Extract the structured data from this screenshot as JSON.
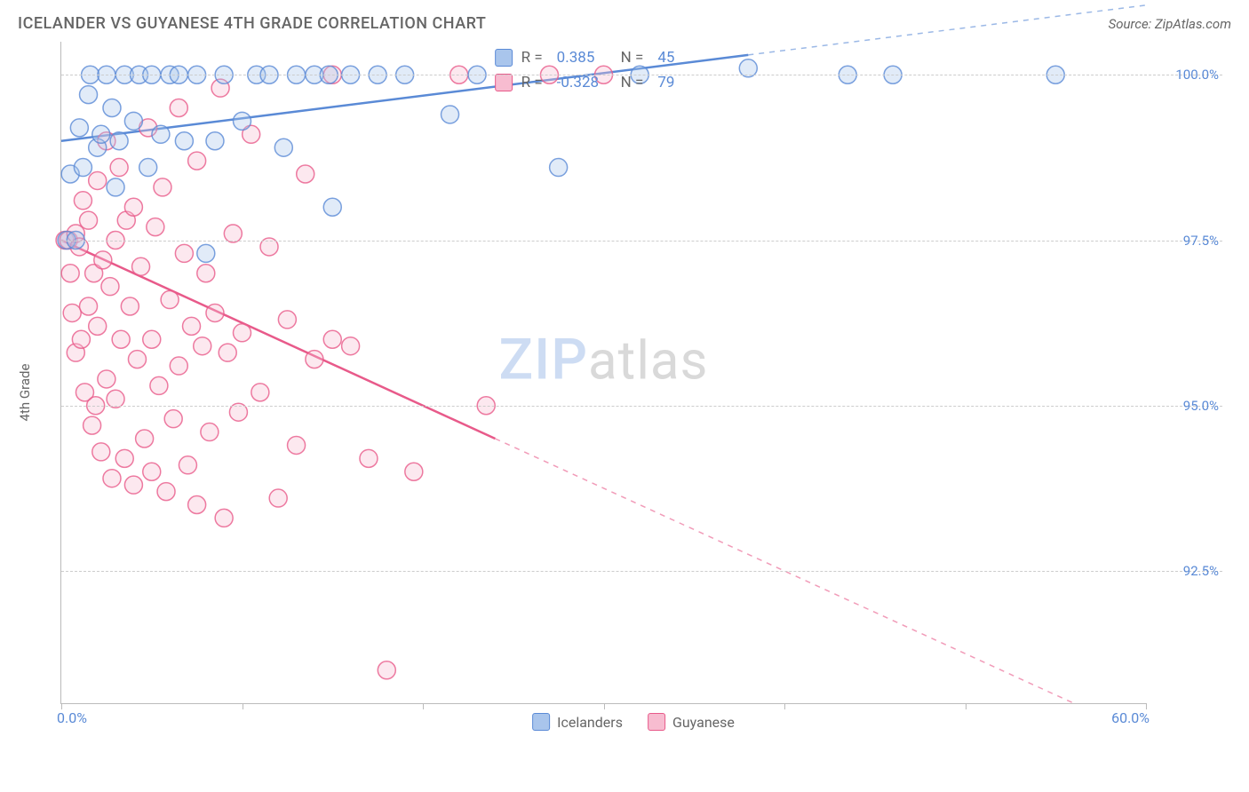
{
  "header": {
    "title": "ICELANDER VS GUYANESE 4TH GRADE CORRELATION CHART",
    "source": "Source: ZipAtlas.com"
  },
  "watermark": {
    "brand_prefix": "ZIP",
    "brand_suffix": "atlas"
  },
  "chart": {
    "type": "scatter",
    "ylabel": "4th Grade",
    "background_color": "#ffffff",
    "grid_color": "#cccccc",
    "axis_color": "#bbbbbb",
    "tick_label_color": "#5a8ad6",
    "text_color": "#666666",
    "xlim": [
      0,
      60
    ],
    "ylim": [
      90.5,
      100.5
    ],
    "x_ticks": [
      0,
      10,
      20,
      30,
      40,
      50,
      60
    ],
    "x_tick_labels": {
      "min": "0.0%",
      "max": "60.0%"
    },
    "y_gridlines": [
      92.5,
      95.0,
      97.5,
      100.0
    ],
    "y_tick_labels": [
      "92.5%",
      "95.0%",
      "97.5%",
      "100.0%"
    ],
    "marker_radius": 10,
    "marker_fill_opacity": 0.35,
    "marker_stroke_width": 1.5,
    "trend_line_width": 2.5,
    "series": [
      {
        "name": "Icelanders",
        "color": "#5a8ad6",
        "fill": "#a9c5ec",
        "R": "0.385",
        "N": "45",
        "trend": {
          "x1": 0,
          "y1": 99.0,
          "x2": 38,
          "y2": 100.3,
          "extrapolate_to_x": 60
        },
        "points": [
          [
            0.3,
            97.5
          ],
          [
            0.5,
            98.5
          ],
          [
            0.8,
            97.5
          ],
          [
            1.0,
            99.2
          ],
          [
            1.2,
            98.6
          ],
          [
            1.5,
            99.7
          ],
          [
            1.6,
            100.0
          ],
          [
            2.0,
            98.9
          ],
          [
            2.2,
            99.1
          ],
          [
            2.5,
            100.0
          ],
          [
            2.8,
            99.5
          ],
          [
            3.0,
            98.3
          ],
          [
            3.2,
            99.0
          ],
          [
            3.5,
            100.0
          ],
          [
            4.0,
            99.3
          ],
          [
            4.3,
            100.0
          ],
          [
            4.8,
            98.6
          ],
          [
            5.0,
            100.0
          ],
          [
            5.5,
            99.1
          ],
          [
            6.0,
            100.0
          ],
          [
            6.5,
            100.0
          ],
          [
            6.8,
            99.0
          ],
          [
            7.5,
            100.0
          ],
          [
            8.0,
            97.3
          ],
          [
            8.5,
            99.0
          ],
          [
            9.0,
            100.0
          ],
          [
            10.0,
            99.3
          ],
          [
            10.8,
            100.0
          ],
          [
            11.5,
            100.0
          ],
          [
            12.3,
            98.9
          ],
          [
            13.0,
            100.0
          ],
          [
            14.0,
            100.0
          ],
          [
            14.8,
            100.0
          ],
          [
            15.0,
            98.0
          ],
          [
            16.0,
            100.0
          ],
          [
            17.5,
            100.0
          ],
          [
            19.0,
            100.0
          ],
          [
            21.5,
            99.4
          ],
          [
            23.0,
            100.0
          ],
          [
            27.5,
            98.6
          ],
          [
            32.0,
            100.0
          ],
          [
            38.0,
            100.1
          ],
          [
            43.5,
            100.0
          ],
          [
            46.0,
            100.0
          ],
          [
            55.0,
            100.0
          ]
        ]
      },
      {
        "name": "Guyanese",
        "color": "#e85a8a",
        "fill": "#f7bcd0",
        "R": "-0.328",
        "N": "79",
        "trend": {
          "x1": 0,
          "y1": 97.5,
          "x2": 24,
          "y2": 94.5,
          "extrapolate_to_x": 56
        },
        "points": [
          [
            0.2,
            97.5
          ],
          [
            0.4,
            97.5
          ],
          [
            0.5,
            97.0
          ],
          [
            0.6,
            96.4
          ],
          [
            0.8,
            97.6
          ],
          [
            0.8,
            95.8
          ],
          [
            1.0,
            97.4
          ],
          [
            1.1,
            96.0
          ],
          [
            1.2,
            98.1
          ],
          [
            1.3,
            95.2
          ],
          [
            1.5,
            97.8
          ],
          [
            1.5,
            96.5
          ],
          [
            1.7,
            94.7
          ],
          [
            1.8,
            97.0
          ],
          [
            1.9,
            95.0
          ],
          [
            2.0,
            96.2
          ],
          [
            2.0,
            98.4
          ],
          [
            2.2,
            94.3
          ],
          [
            2.3,
            97.2
          ],
          [
            2.5,
            95.4
          ],
          [
            2.5,
            99.0
          ],
          [
            2.7,
            96.8
          ],
          [
            2.8,
            93.9
          ],
          [
            3.0,
            97.5
          ],
          [
            3.0,
            95.1
          ],
          [
            3.2,
            98.6
          ],
          [
            3.3,
            96.0
          ],
          [
            3.5,
            94.2
          ],
          [
            3.6,
            97.8
          ],
          [
            3.8,
            96.5
          ],
          [
            4.0,
            93.8
          ],
          [
            4.0,
            98.0
          ],
          [
            4.2,
            95.7
          ],
          [
            4.4,
            97.1
          ],
          [
            4.6,
            94.5
          ],
          [
            4.8,
            99.2
          ],
          [
            5.0,
            96.0
          ],
          [
            5.0,
            94.0
          ],
          [
            5.2,
            97.7
          ],
          [
            5.4,
            95.3
          ],
          [
            5.6,
            98.3
          ],
          [
            5.8,
            93.7
          ],
          [
            6.0,
            96.6
          ],
          [
            6.2,
            94.8
          ],
          [
            6.5,
            99.5
          ],
          [
            6.5,
            95.6
          ],
          [
            6.8,
            97.3
          ],
          [
            7.0,
            94.1
          ],
          [
            7.2,
            96.2
          ],
          [
            7.5,
            98.7
          ],
          [
            7.5,
            93.5
          ],
          [
            7.8,
            95.9
          ],
          [
            8.0,
            97.0
          ],
          [
            8.2,
            94.6
          ],
          [
            8.5,
            96.4
          ],
          [
            8.8,
            99.8
          ],
          [
            9.0,
            93.3
          ],
          [
            9.2,
            95.8
          ],
          [
            9.5,
            97.6
          ],
          [
            9.8,
            94.9
          ],
          [
            10.0,
            96.1
          ],
          [
            10.5,
            99.1
          ],
          [
            11.0,
            95.2
          ],
          [
            11.5,
            97.4
          ],
          [
            12.0,
            93.6
          ],
          [
            12.5,
            96.3
          ],
          [
            13.0,
            94.4
          ],
          [
            13.5,
            98.5
          ],
          [
            14.0,
            95.7
          ],
          [
            15.0,
            96.0
          ],
          [
            15.0,
            100.0
          ],
          [
            16.0,
            95.9
          ],
          [
            17.0,
            94.2
          ],
          [
            18.0,
            91.0
          ],
          [
            19.5,
            94.0
          ],
          [
            22.0,
            100.0
          ],
          [
            23.5,
            95.0
          ],
          [
            27.0,
            100.0
          ],
          [
            30.0,
            100.0
          ]
        ]
      }
    ],
    "legend": {
      "top": {
        "R_label": "R =",
        "N_label": "N ="
      },
      "bottom": {
        "items": [
          "Icelanders",
          "Guyanese"
        ]
      }
    }
  }
}
